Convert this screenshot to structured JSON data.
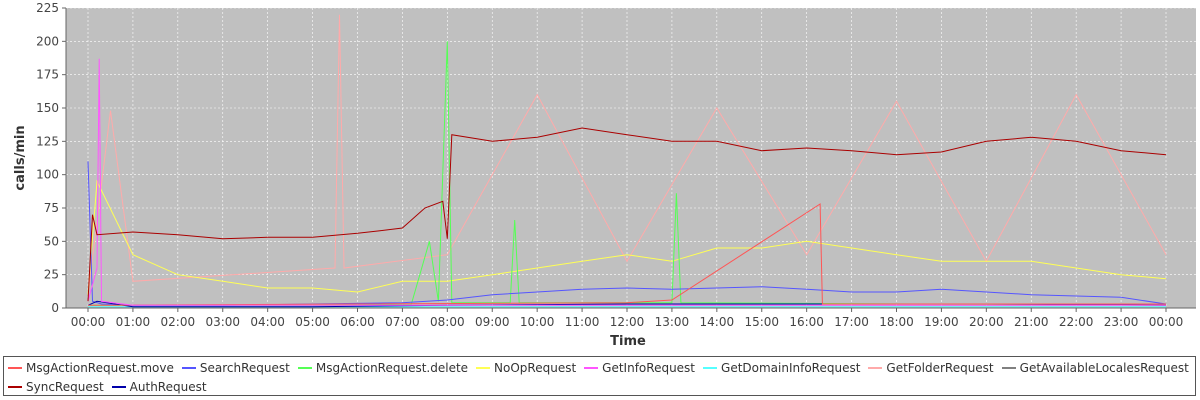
{
  "chart_data": {
    "type": "line",
    "title": "",
    "xlabel": "Time",
    "ylabel": "calls/min",
    "ylim": [
      0,
      225
    ],
    "yticks": [
      "0",
      "25",
      "50",
      "75",
      "100",
      "125",
      "150",
      "175",
      "200",
      "225"
    ],
    "xticks": [
      "00:00",
      "01:00",
      "02:00",
      "03:00",
      "04:00",
      "05:00",
      "06:00",
      "07:00",
      "08:00",
      "09:00",
      "10:00",
      "11:00",
      "12:00",
      "13:00",
      "14:00",
      "15:00",
      "16:00",
      "17:00",
      "18:00",
      "19:00",
      "20:00",
      "21:00",
      "22:00",
      "23:00",
      "00:00"
    ],
    "xlim_hours": [
      0,
      24
    ],
    "grid": true,
    "background": "#c0c0c0",
    "legend_position": "bottom",
    "series": [
      {
        "name": "MsgActionRequest.move",
        "color": "#ff5555",
        "x": [
          0,
          6,
          12,
          13,
          16.3,
          16.35,
          24
        ],
        "y": [
          2,
          3,
          4,
          6,
          78,
          3,
          3
        ]
      },
      {
        "name": "SearchRequest",
        "color": "#5555ff",
        "x": [
          0,
          0.1,
          0.3,
          1,
          3,
          5,
          7,
          8,
          9,
          10,
          11,
          12,
          13,
          14,
          15,
          16,
          17,
          18,
          19,
          20,
          21,
          22,
          23,
          24
        ],
        "y": [
          110,
          5,
          3,
          2,
          2,
          3,
          4,
          6,
          10,
          12,
          14,
          15,
          14,
          15,
          16,
          14,
          12,
          12,
          14,
          12,
          10,
          9,
          8,
          3
        ]
      },
      {
        "name": "MsgActionRequest.delete",
        "color": "#55ff55",
        "x": [
          0,
          6,
          7.2,
          7.6,
          7.8,
          8.0,
          8.1,
          9.4,
          9.5,
          9.6,
          13.0,
          13.1,
          13.2,
          24
        ],
        "y": [
          2,
          2,
          3,
          50,
          5,
          200,
          4,
          4,
          66,
          4,
          4,
          86,
          4,
          2
        ]
      },
      {
        "name": "NoOpRequest",
        "color": "#ffff55",
        "x": [
          0,
          0.2,
          1,
          2,
          3,
          4,
          5,
          6,
          7,
          8,
          9,
          10,
          11,
          12,
          13,
          14,
          15,
          16,
          17,
          18,
          19,
          20,
          21,
          22,
          23,
          24
        ],
        "y": [
          10,
          95,
          40,
          25,
          20,
          15,
          15,
          12,
          20,
          20,
          25,
          30,
          35,
          40,
          35,
          45,
          45,
          50,
          45,
          40,
          35,
          35,
          35,
          30,
          25,
          22
        ]
      },
      {
        "name": "GetInfoRequest",
        "color": "#ff55ff",
        "x": [
          0,
          0.2,
          0.25,
          0.3,
          1,
          24
        ],
        "y": [
          5,
          30,
          187,
          5,
          2,
          2
        ]
      },
      {
        "name": "GetDomainInfoRequest",
        "color": "#55ffff",
        "x": [
          0,
          24
        ],
        "y": [
          1,
          1
        ]
      },
      {
        "name": "GetFolderRequest",
        "color": "#ffaaaa",
        "x": [
          0,
          0.5,
          1,
          5.5,
          5.6,
          5.7,
          8,
          10,
          12,
          14,
          16,
          18,
          20,
          22,
          24
        ],
        "y": [
          10,
          148,
          20,
          30,
          220,
          30,
          40,
          160,
          35,
          150,
          40,
          155,
          35,
          160,
          40
        ]
      },
      {
        "name": "GetAvailableLocalesRequest",
        "color": "#808080",
        "x": [
          0,
          24
        ],
        "y": [
          0,
          0
        ]
      },
      {
        "name": "SyncRequest",
        "color": "#aa0000",
        "x": [
          0,
          0.1,
          0.2,
          1,
          2,
          3,
          4,
          5,
          6,
          6.5,
          7,
          7.5,
          7.9,
          8.0,
          8.1,
          9,
          10,
          11,
          12,
          13,
          14,
          15,
          16,
          17,
          18,
          19,
          20,
          21,
          22,
          23,
          24
        ],
        "y": [
          5,
          70,
          55,
          57,
          55,
          52,
          53,
          53,
          56,
          58,
          60,
          75,
          80,
          52,
          130,
          125,
          128,
          135,
          130,
          125,
          125,
          118,
          120,
          118,
          115,
          117,
          125,
          128,
          125,
          118,
          115
        ]
      },
      {
        "name": "AuthRequest",
        "color": "#0000aa",
        "x": [
          0,
          0.2,
          1,
          5,
          8,
          12,
          16,
          20,
          24
        ],
        "y": [
          2,
          5,
          1,
          1,
          2,
          3,
          3,
          3,
          2
        ]
      }
    ]
  }
}
